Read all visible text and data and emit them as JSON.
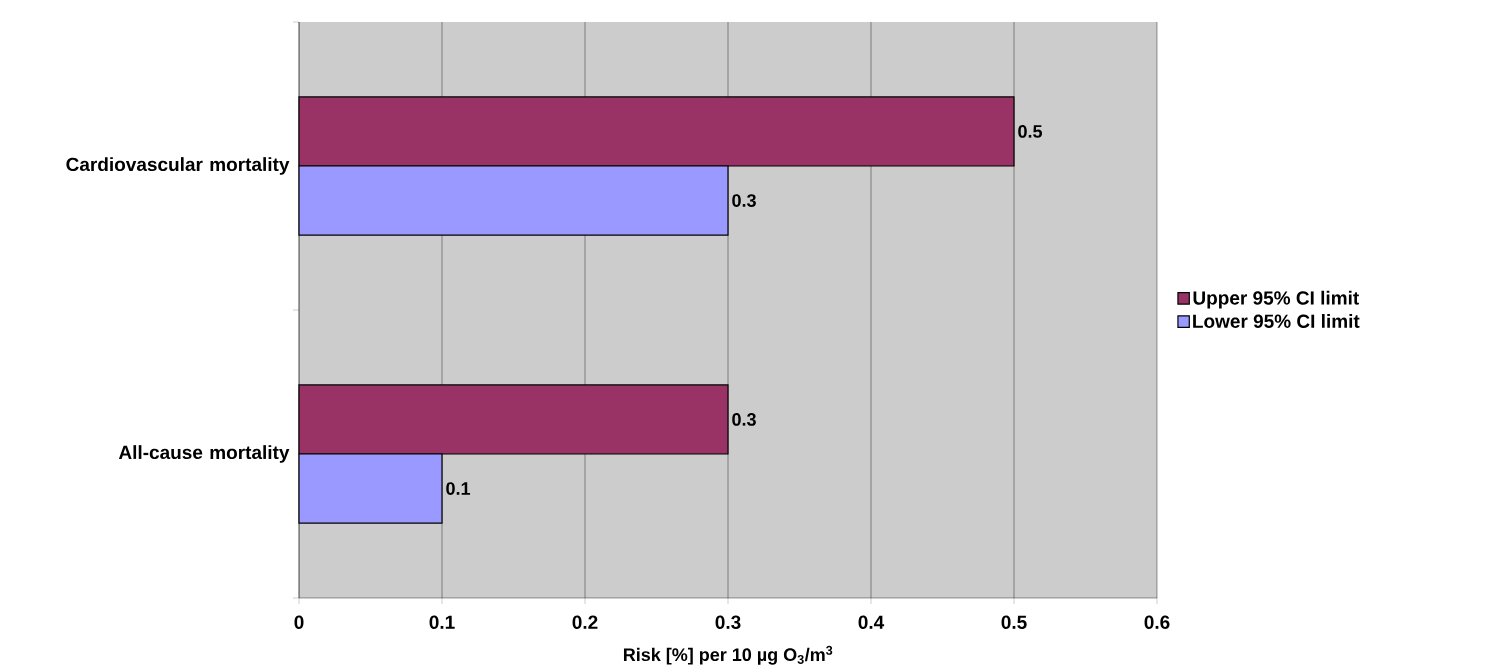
{
  "chart_data": {
    "type": "bar",
    "orientation": "horizontal",
    "categories": [
      "Cardiovascular mortality",
      "All-cause mortality"
    ],
    "series": [
      {
        "name": "Upper 95% CI limit",
        "color": "#993366",
        "values": [
          0.5,
          0.3
        ]
      },
      {
        "name": "Lower 95% CI limit",
        "color": "#9999ff",
        "values": [
          0.3,
          0.1
        ]
      }
    ],
    "xlabel": "Risk [%] per 10 µg O$_{3}$/m$^{3}$",
    "xlim": [
      0,
      0.6
    ],
    "xticks": [
      0,
      0.1,
      0.2,
      0.3,
      0.4,
      0.5,
      0.6
    ],
    "grid": "x",
    "legend": "right",
    "data_labels": true
  }
}
